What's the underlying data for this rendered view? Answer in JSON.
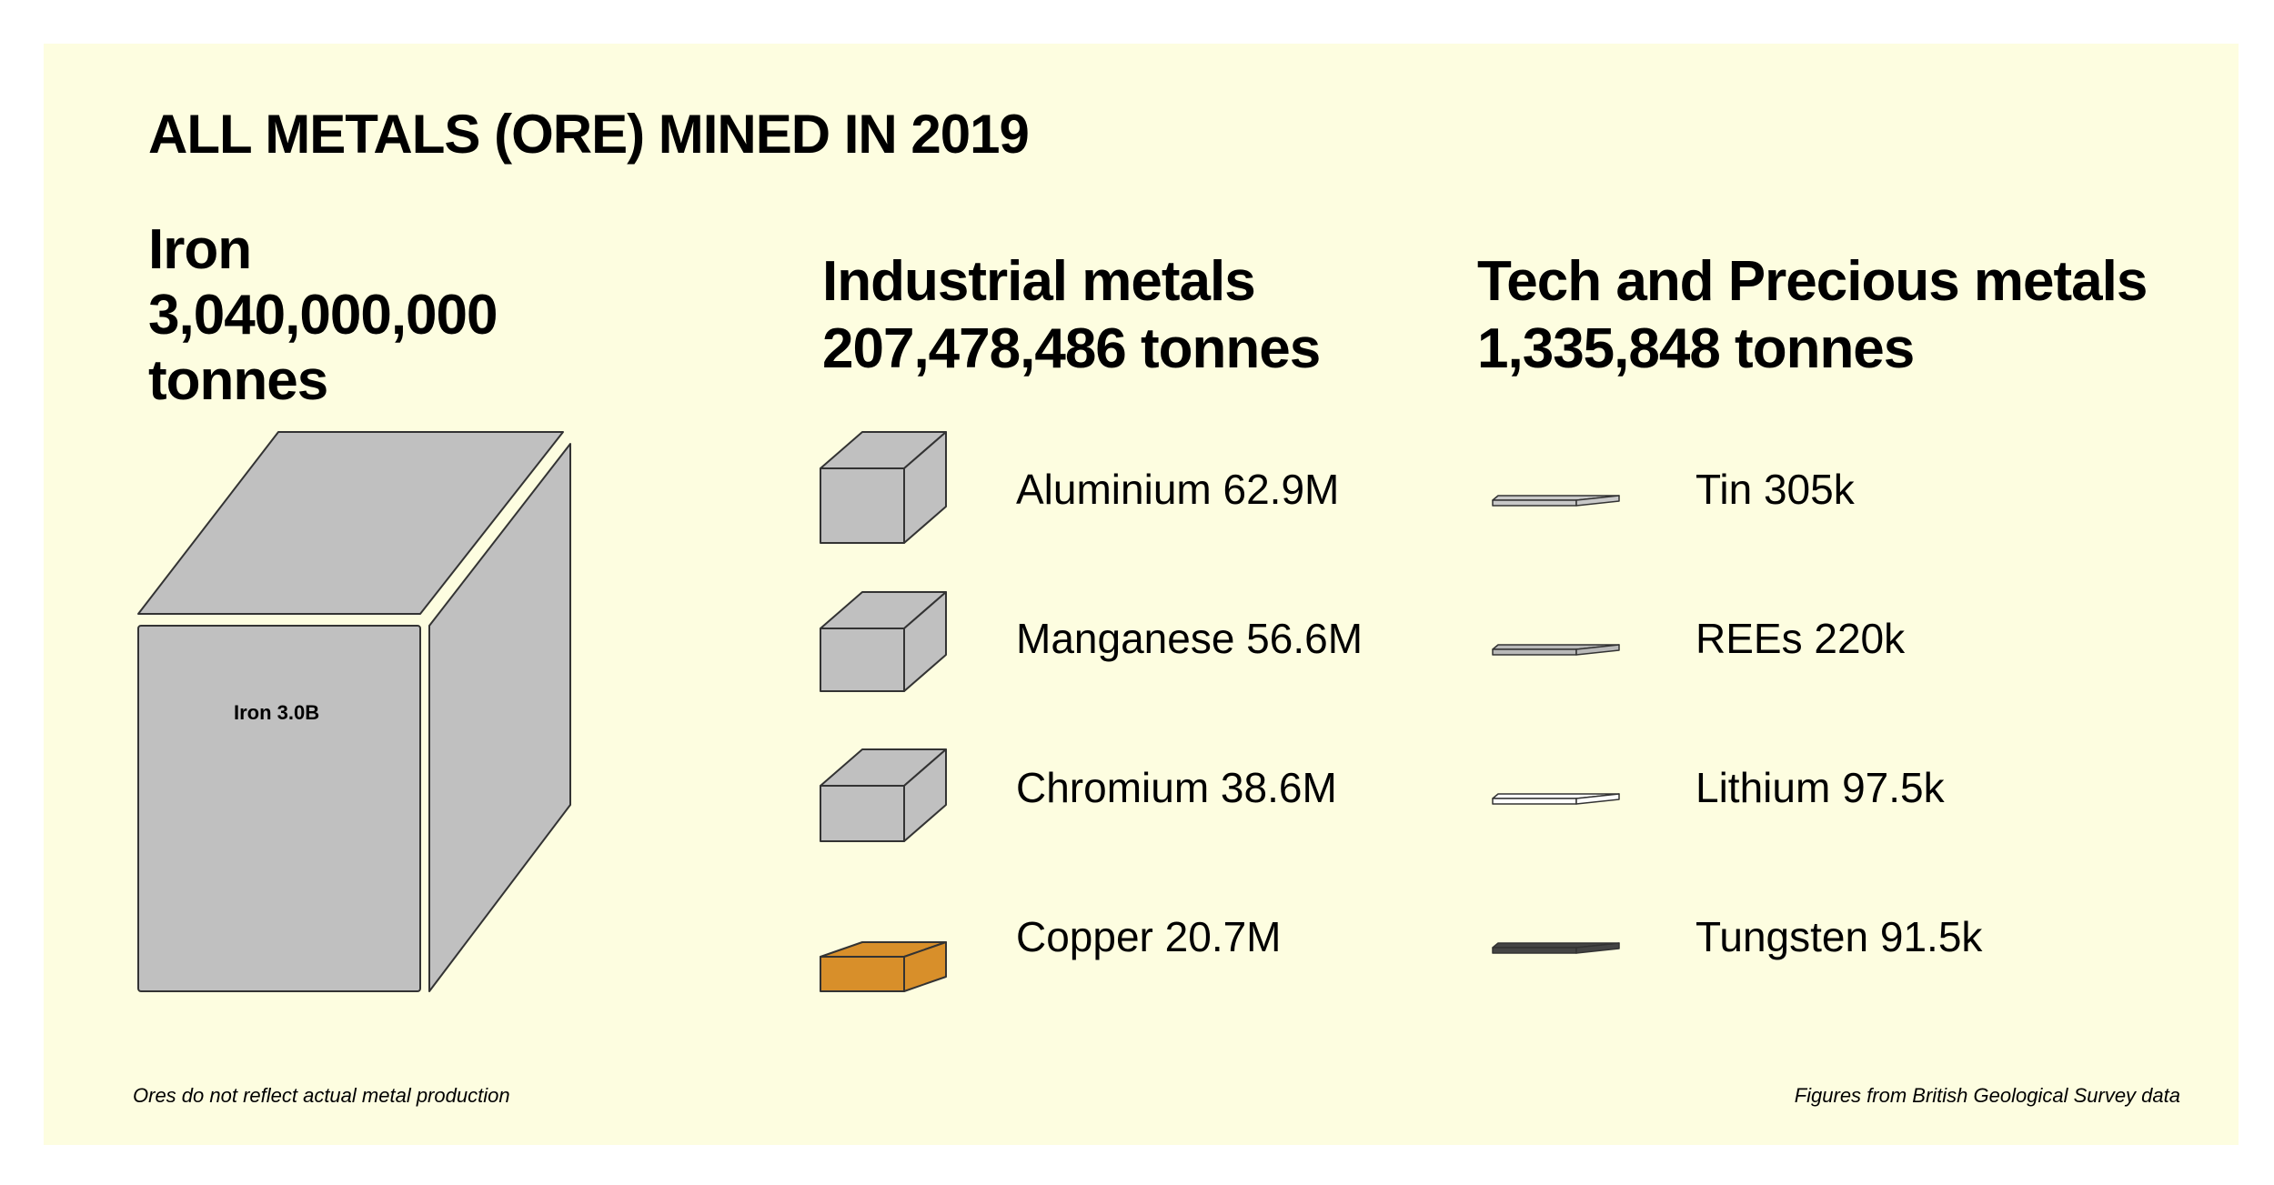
{
  "header": {
    "title": "ALL METALS (ORE) MINED IN 2019"
  },
  "iron": {
    "name": "Iron",
    "total": "3,040,000,000 tonnes",
    "label": "Iron 3.0B"
  },
  "groups": [
    {
      "name": "Industrial metals",
      "total": "207,478,486 tonnes",
      "items": [
        "Aluminium 62.9M",
        "Manganese 56.6M",
        "Chromium 38.6M",
        "Copper 20.7M"
      ]
    },
    {
      "name": "Tech and Precious metals",
      "total": "1,335,848 tonnes",
      "items": [
        "Tin 305k",
        "REEs 220k",
        "Lithium 97.5k",
        "Tungsten 91.5k"
      ]
    }
  ],
  "footer": {
    "left": "Ores do not reflect actual metal production",
    "right": "Figures from British Geological Survey data"
  }
}
